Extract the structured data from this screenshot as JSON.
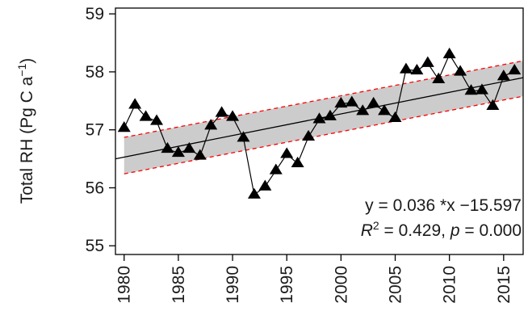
{
  "chart_data": {
    "type": "line",
    "ylabel_main": "Total RH (Pg C  a",
    "ylabel_sup": "−1",
    "ylabel_end": ")",
    "xlabel": "",
    "xlim": [
      1979.2,
      2016.8
    ],
    "ylim": [
      54.85,
      59.1
    ],
    "xticks": [
      "1980",
      "1985",
      "1990",
      "1995",
      "2000",
      "2005",
      "2010",
      "2015"
    ],
    "yticks": [
      "55",
      "56",
      "57",
      "58",
      "59"
    ],
    "grid": false,
    "series": [
      {
        "marker": "triangle",
        "color": "#000000",
        "x": [
          1980,
          1981,
          1982,
          1983,
          1984,
          1985,
          1986,
          1987,
          1988,
          1989,
          1990,
          1991,
          1992,
          1993,
          1994,
          1995,
          1996,
          1997,
          1998,
          1999,
          2000,
          2001,
          2002,
          2003,
          2004,
          2005,
          2006,
          2007,
          2008,
          2009,
          2010,
          2011,
          2012,
          2013,
          2014,
          2015,
          2016
        ],
        "y": [
          57.03,
          57.43,
          57.22,
          57.15,
          56.67,
          56.6,
          56.67,
          56.55,
          57.07,
          57.29,
          57.22,
          56.86,
          55.88,
          56.02,
          56.3,
          56.58,
          56.42,
          56.88,
          57.18,
          57.23,
          57.45,
          57.47,
          57.32,
          57.45,
          57.32,
          57.2,
          58.04,
          58.02,
          58.15,
          57.87,
          58.3,
          58.0,
          57.67,
          57.68,
          57.41,
          57.92,
          58.02
        ]
      }
    ],
    "trend": {
      "color": "#000000",
      "x": [
        1979.2,
        2016.8
      ],
      "y": [
        56.5,
        57.9
      ]
    },
    "confidence_band": {
      "fill": "#cccccc",
      "edge_color": "#ff0000",
      "x": [
        1980,
        2016.8
      ],
      "lower": [
        56.24,
        57.58
      ],
      "upper": [
        56.87,
        58.19
      ]
    },
    "equation_text": "y =  0.036 *x −15.597",
    "r2_label": "R",
    "r2_sup": "2",
    "r2_text": " = 0.429, ",
    "p_label": "p",
    "p_text": " = 0.000"
  }
}
